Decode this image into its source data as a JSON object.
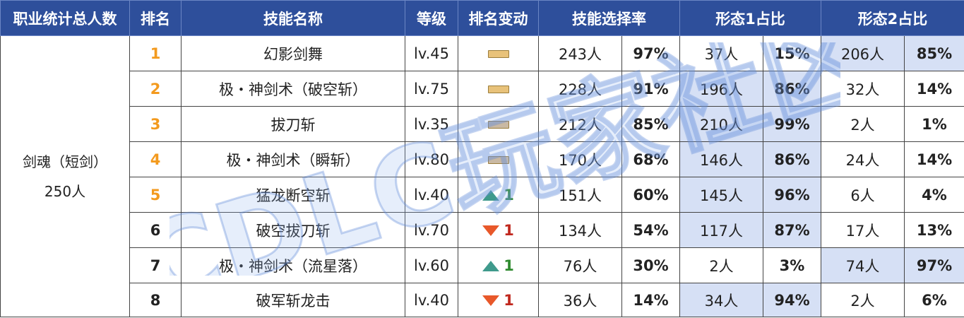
{
  "headers": [
    "职业统计总人数",
    "排名",
    "技能名称",
    "等级",
    "排名变动",
    "技能选择率",
    "形态1占比",
    "形态2占比"
  ],
  "job": {
    "name": "剑魂（短剑）",
    "total": "250人"
  },
  "colors": {
    "header_bg": "#2e4f9b",
    "rank_top": "#f39a1e",
    "up": "#3f9a8c",
    "down": "#e8582a",
    "highlight": "#d6e0f5"
  },
  "rows": [
    {
      "rank": "1",
      "skill": "幻影剑舞",
      "level": "lv.45",
      "change": {
        "dir": "none",
        "color": "#e8c27a",
        "value": ""
      },
      "select_count": "243人",
      "select_rate": "97%",
      "f1_count": "37人",
      "f1_rate": "15%",
      "f2_count": "206人",
      "f2_rate": "85%",
      "hl": "f2"
    },
    {
      "rank": "2",
      "skill": "极・神剑术（破空斩）",
      "level": "lv.75",
      "change": {
        "dir": "none",
        "color": "#e8c27a",
        "value": ""
      },
      "select_count": "228人",
      "select_rate": "91%",
      "f1_count": "196人",
      "f1_rate": "86%",
      "f2_count": "32人",
      "f2_rate": "14%",
      "hl": "f1"
    },
    {
      "rank": "3",
      "skill": "拔刀斩",
      "level": "lv.35",
      "change": {
        "dir": "none",
        "color": "#c9b9a3",
        "value": ""
      },
      "select_count": "212人",
      "select_rate": "85%",
      "f1_count": "210人",
      "f1_rate": "99%",
      "f2_count": "2人",
      "f2_rate": "1%",
      "hl": "f1"
    },
    {
      "rank": "4",
      "skill": "极・神剑术（瞬斩）",
      "level": "lv.80",
      "change": {
        "dir": "none",
        "color": "#c9b9a3",
        "value": ""
      },
      "select_count": "170人",
      "select_rate": "68%",
      "f1_count": "146人",
      "f1_rate": "86%",
      "f2_count": "24人",
      "f2_rate": "14%",
      "hl": "f1"
    },
    {
      "rank": "5",
      "skill": "猛龙断空斩",
      "level": "lv.40",
      "change": {
        "dir": "up",
        "value": "1"
      },
      "select_count": "151人",
      "select_rate": "60%",
      "f1_count": "145人",
      "f1_rate": "96%",
      "f2_count": "6人",
      "f2_rate": "4%",
      "hl": "f1"
    },
    {
      "rank": "6",
      "skill": "破空拔刀斩",
      "level": "lv.70",
      "change": {
        "dir": "down",
        "value": "1"
      },
      "select_count": "134人",
      "select_rate": "54%",
      "f1_count": "117人",
      "f1_rate": "87%",
      "f2_count": "17人",
      "f2_rate": "13%",
      "hl": "f1"
    },
    {
      "rank": "7",
      "skill": "极・神剑术（流星落）",
      "level": "lv.60",
      "change": {
        "dir": "up",
        "value": "1"
      },
      "select_count": "76人",
      "select_rate": "30%",
      "f1_count": "2人",
      "f1_rate": "3%",
      "f2_count": "74人",
      "f2_rate": "97%",
      "hl": "f2"
    },
    {
      "rank": "8",
      "skill": "破军斩龙击",
      "level": "lv.40",
      "change": {
        "dir": "down",
        "value": "1"
      },
      "select_count": "36人",
      "select_rate": "14%",
      "f1_count": "34人",
      "f1_rate": "94%",
      "f2_count": "2人",
      "f2_rate": "6%",
      "hl": "f1"
    }
  ],
  "watermark": {
    "text": "CDLC玩家社区"
  }
}
